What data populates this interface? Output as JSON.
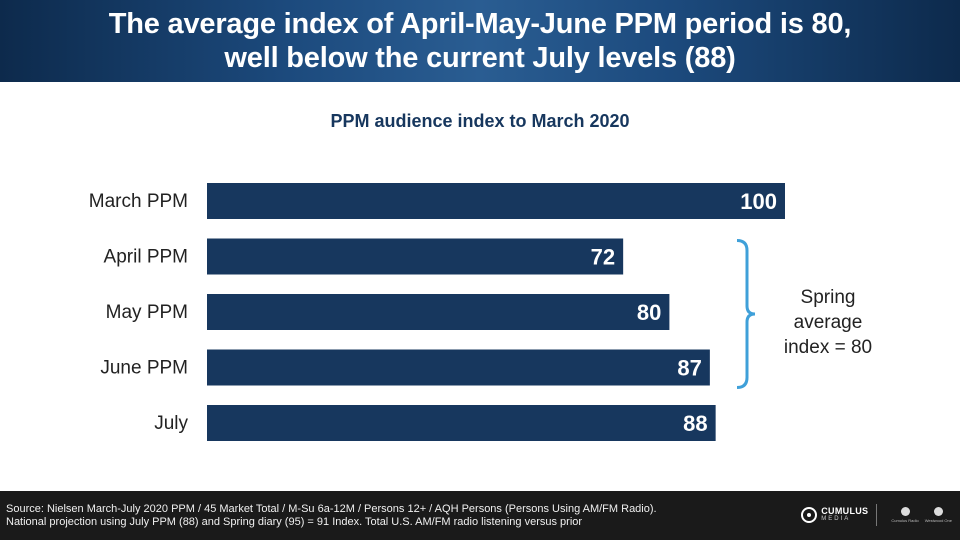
{
  "header": {
    "title_line1": "The average index of April-May-June PPM period is 80,",
    "title_line2": "well below the current July levels (88)"
  },
  "colors": {
    "bar": "#17375e",
    "bracket": "#3fa0d9",
    "header_dark": "#0d2a4c",
    "footer_bg": "#1a1a1a"
  },
  "chart_data": {
    "type": "bar",
    "orientation": "horizontal",
    "title": "PPM audience index to March 2020",
    "categories": [
      "March PPM",
      "April PPM",
      "May PPM",
      "June PPM",
      "July"
    ],
    "values": [
      100,
      72,
      80,
      87,
      88
    ],
    "xlim": [
      0,
      100
    ],
    "grid": false,
    "data_labels": true,
    "annotation": {
      "text_lines": [
        "Spring",
        "average",
        "index = 80"
      ],
      "brackets": [
        "April PPM",
        "May PPM",
        "June PPM"
      ]
    }
  },
  "footer": {
    "source_line1": "Source: Nielsen March-July 2020 PPM / 45 Market Total / M-Su 6a-12M / Persons 12+ / AQH Persons (Persons Using AM/FM Radio).",
    "source_line2": "National projection using July PPM (88) and Spring diary (95) = 91 Index. Total U.S. AM/FM radio listening versus prior",
    "logo_name": "CUMULUS",
    "logo_sub": "MEDIA",
    "logo2_text": "Cumulus Radio",
    "logo3_text": "Westwood One"
  }
}
